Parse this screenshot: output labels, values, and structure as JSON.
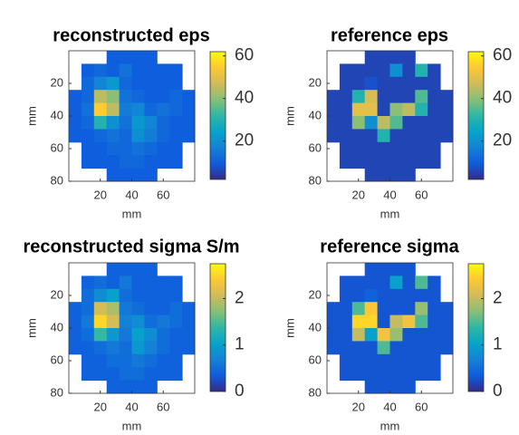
{
  "chart_data": [
    {
      "type": "heatmap",
      "title": "reconstructed eps",
      "xlabel": "mm",
      "ylabel": "mm",
      "xlim": [
        0,
        80
      ],
      "ylim": [
        0,
        80
      ],
      "xticks": [
        20,
        40,
        60
      ],
      "yticks": [
        20,
        40,
        60,
        80
      ],
      "clim": [
        2,
        62
      ],
      "cticks": [
        20,
        40,
        60
      ],
      "colormap": [
        "#352a87",
        "#0f5cdd",
        "#1481d6",
        "#06a4ca",
        "#2eb7a4",
        "#87bf77",
        "#d1bb59",
        "#fec832",
        "#f9fb0e"
      ],
      "z": [
        [
          null,
          null,
          null,
          10,
          10,
          10,
          10,
          null,
          null,
          null
        ],
        [
          null,
          10,
          12,
          10,
          14,
          10,
          10,
          10,
          10,
          null
        ],
        [
          null,
          12,
          18,
          22,
          12,
          10,
          10,
          10,
          10,
          null
        ],
        [
          10,
          12,
          45,
          40,
          14,
          12,
          10,
          10,
          12,
          10
        ],
        [
          10,
          14,
          55,
          45,
          16,
          18,
          12,
          14,
          12,
          10
        ],
        [
          10,
          12,
          30,
          20,
          14,
          22,
          18,
          12,
          10,
          10
        ],
        [
          10,
          10,
          12,
          14,
          12,
          20,
          16,
          12,
          10,
          10
        ],
        [
          null,
          10,
          10,
          12,
          12,
          14,
          12,
          10,
          10,
          null
        ],
        [
          null,
          10,
          10,
          10,
          12,
          12,
          10,
          10,
          10,
          null
        ],
        [
          null,
          null,
          null,
          10,
          10,
          10,
          10,
          null,
          null,
          null
        ]
      ]
    },
    {
      "type": "heatmap",
      "title": "reference eps",
      "xlabel": "mm",
      "ylabel": "mm",
      "xlim": [
        0,
        80
      ],
      "ylim": [
        0,
        80
      ],
      "xticks": [
        20,
        40,
        60
      ],
      "yticks": [
        20,
        40,
        60,
        80
      ],
      "clim": [
        2,
        62
      ],
      "cticks": [
        20,
        40,
        60
      ],
      "colormap": [
        "#352a87",
        "#0f5cdd",
        "#1481d6",
        "#06a4ca",
        "#2eb7a4",
        "#87bf77",
        "#d1bb59",
        "#fec832",
        "#f9fb0e"
      ],
      "z": [
        [
          null,
          null,
          null,
          6,
          6,
          6,
          6,
          null,
          null,
          null
        ],
        [
          null,
          6,
          6,
          6,
          6,
          20,
          6,
          30,
          6,
          null
        ],
        [
          null,
          6,
          6,
          8,
          6,
          6,
          6,
          6,
          6,
          null
        ],
        [
          6,
          6,
          30,
          48,
          6,
          6,
          6,
          35,
          6,
          6
        ],
        [
          6,
          6,
          50,
          50,
          6,
          40,
          45,
          30,
          6,
          6
        ],
        [
          6,
          6,
          40,
          20,
          45,
          35,
          6,
          6,
          6,
          6
        ],
        [
          6,
          6,
          6,
          6,
          30,
          6,
          6,
          6,
          6,
          6
        ],
        [
          null,
          6,
          6,
          6,
          6,
          6,
          6,
          6,
          6,
          null
        ],
        [
          null,
          6,
          6,
          6,
          6,
          6,
          6,
          6,
          6,
          null
        ],
        [
          null,
          null,
          null,
          6,
          6,
          6,
          6,
          null,
          null,
          null
        ]
      ]
    },
    {
      "type": "heatmap",
      "title": "reconstructed sigma S/m",
      "xlabel": "mm",
      "ylabel": "mm",
      "xlim": [
        0,
        80
      ],
      "ylim": [
        0,
        80
      ],
      "xticks": [
        20,
        40,
        60
      ],
      "yticks": [
        20,
        40,
        60,
        80
      ],
      "clim": [
        0,
        2.75
      ],
      "cticks": [
        0,
        1,
        2
      ],
      "colormap": [
        "#352a87",
        "#0f5cdd",
        "#1481d6",
        "#06a4ca",
        "#2eb7a4",
        "#87bf77",
        "#d1bb59",
        "#fec832",
        "#f9fb0e"
      ],
      "z": [
        [
          null,
          null,
          null,
          0.4,
          0.4,
          0.4,
          0.4,
          null,
          null,
          null
        ],
        [
          null,
          0.4,
          0.5,
          0.4,
          0.6,
          0.4,
          0.4,
          0.4,
          0.4,
          null
        ],
        [
          null,
          0.5,
          0.8,
          1.0,
          0.5,
          0.4,
          0.4,
          0.4,
          0.4,
          null
        ],
        [
          0.4,
          0.5,
          2.1,
          1.9,
          0.6,
          0.5,
          0.4,
          0.4,
          0.5,
          0.4
        ],
        [
          0.4,
          0.6,
          2.5,
          2.1,
          0.7,
          0.8,
          0.5,
          0.6,
          0.5,
          0.4
        ],
        [
          0.4,
          0.5,
          1.4,
          0.9,
          0.6,
          1.0,
          0.8,
          0.5,
          0.4,
          0.4
        ],
        [
          0.4,
          0.4,
          0.5,
          0.6,
          0.5,
          0.9,
          0.7,
          0.5,
          0.4,
          0.4
        ],
        [
          null,
          0.4,
          0.4,
          0.5,
          0.5,
          0.6,
          0.5,
          0.4,
          0.4,
          null
        ],
        [
          null,
          0.4,
          0.4,
          0.4,
          0.5,
          0.5,
          0.4,
          0.4,
          0.4,
          null
        ],
        [
          null,
          null,
          null,
          0.4,
          0.4,
          0.4,
          0.4,
          null,
          null,
          null
        ]
      ]
    },
    {
      "type": "heatmap",
      "title": "reference sigma",
      "xlabel": "mm",
      "ylabel": "mm",
      "xlim": [
        0,
        80
      ],
      "ylim": [
        0,
        80
      ],
      "xticks": [
        20,
        40,
        60
      ],
      "yticks": [
        20,
        40,
        60,
        80
      ],
      "clim": [
        0,
        2.75
      ],
      "cticks": [
        0,
        1,
        2
      ],
      "colormap": [
        "#352a87",
        "#0f5cdd",
        "#1481d6",
        "#06a4ca",
        "#2eb7a4",
        "#87bf77",
        "#d1bb59",
        "#fec832",
        "#f9fb0e"
      ],
      "z": [
        [
          null,
          null,
          null,
          0.3,
          0.3,
          0.3,
          0.3,
          null,
          null,
          null
        ],
        [
          null,
          0.3,
          0.3,
          0.3,
          0.3,
          1.0,
          0.3,
          1.5,
          0.3,
          null
        ],
        [
          null,
          0.3,
          0.3,
          0.4,
          0.3,
          0.3,
          0.3,
          0.3,
          0.3,
          null
        ],
        [
          0.3,
          0.3,
          1.5,
          2.4,
          0.3,
          0.3,
          0.3,
          1.8,
          0.3,
          0.3
        ],
        [
          0.3,
          0.3,
          2.5,
          2.5,
          0.3,
          2.0,
          2.3,
          1.5,
          0.3,
          0.3
        ],
        [
          0.3,
          0.3,
          2.0,
          1.0,
          2.3,
          1.8,
          0.3,
          0.3,
          0.3,
          0.3
        ],
        [
          0.3,
          0.3,
          0.3,
          0.3,
          1.5,
          0.3,
          0.3,
          0.3,
          0.3,
          0.3
        ],
        [
          null,
          0.3,
          0.3,
          0.3,
          0.3,
          0.3,
          0.3,
          0.3,
          0.3,
          null
        ],
        [
          null,
          0.3,
          0.3,
          0.3,
          0.3,
          0.3,
          0.3,
          0.3,
          0.3,
          null
        ],
        [
          null,
          null,
          null,
          0.3,
          0.3,
          0.3,
          0.3,
          null,
          null,
          null
        ]
      ]
    }
  ]
}
